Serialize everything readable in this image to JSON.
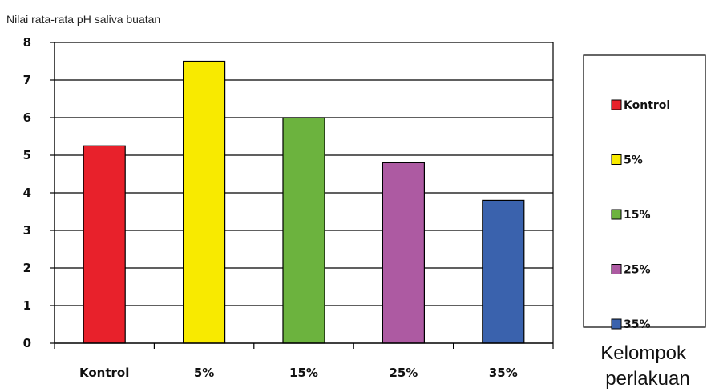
{
  "chart_data": {
    "type": "bar",
    "title": "",
    "ylabel": "Nilai rata-rata pH saliva buatan",
    "xlabel": "Kelompok perlakuan",
    "xlabel_lines": [
      "Kelompok",
      "perlakuan"
    ],
    "categories": [
      "Kontrol",
      "5%",
      "15%",
      "25%",
      "35%"
    ],
    "values": [
      5.25,
      7.5,
      6.0,
      4.8,
      3.8
    ],
    "colors": [
      "#e8212b",
      "#f8ea00",
      "#6cb33e",
      "#ad5aa2",
      "#3a62ad"
    ],
    "ylim": [
      0,
      8
    ],
    "yticks": [
      0,
      1,
      2,
      3,
      4,
      5,
      6,
      7,
      8
    ],
    "grid": true,
    "legend": {
      "position": "right",
      "entries": [
        "Kontrol",
        "5%",
        "15%",
        "25%",
        "35%"
      ]
    }
  }
}
